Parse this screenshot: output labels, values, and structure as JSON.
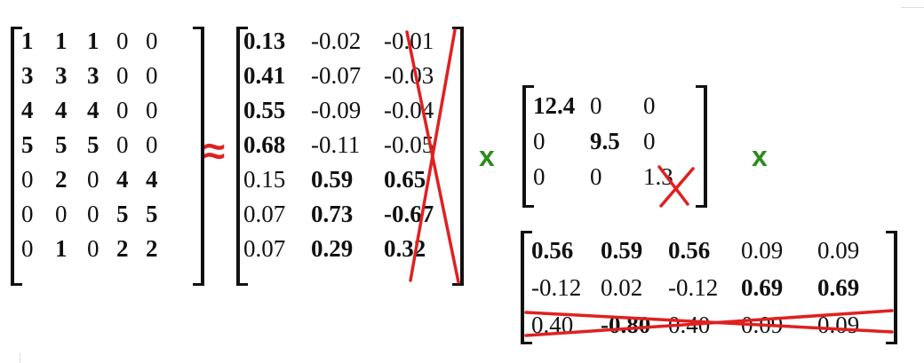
{
  "operators": {
    "approx": "≈",
    "times": "x"
  },
  "matrix_a": {
    "rows": [
      [
        {
          "v": "1",
          "b": true
        },
        {
          "v": "1",
          "b": true
        },
        {
          "v": "1",
          "b": true
        },
        {
          "v": "0",
          "b": false
        },
        {
          "v": "0",
          "b": false
        }
      ],
      [
        {
          "v": "3",
          "b": true
        },
        {
          "v": "3",
          "b": true
        },
        {
          "v": "3",
          "b": true
        },
        {
          "v": "0",
          "b": false
        },
        {
          "v": "0",
          "b": false
        }
      ],
      [
        {
          "v": "4",
          "b": true
        },
        {
          "v": "4",
          "b": true
        },
        {
          "v": "4",
          "b": true
        },
        {
          "v": "0",
          "b": false
        },
        {
          "v": "0",
          "b": false
        }
      ],
      [
        {
          "v": "5",
          "b": true
        },
        {
          "v": "5",
          "b": true
        },
        {
          "v": "5",
          "b": true
        },
        {
          "v": "0",
          "b": false
        },
        {
          "v": "0",
          "b": false
        }
      ],
      [
        {
          "v": "0",
          "b": false
        },
        {
          "v": "2",
          "b": true
        },
        {
          "v": "0",
          "b": false
        },
        {
          "v": "4",
          "b": true
        },
        {
          "v": "4",
          "b": true
        }
      ],
      [
        {
          "v": "0",
          "b": false
        },
        {
          "v": "0",
          "b": false
        },
        {
          "v": "0",
          "b": false
        },
        {
          "v": "5",
          "b": true
        },
        {
          "v": "5",
          "b": true
        }
      ],
      [
        {
          "v": "0",
          "b": false
        },
        {
          "v": "1",
          "b": true
        },
        {
          "v": "0",
          "b": false
        },
        {
          "v": "2",
          "b": true
        },
        {
          "v": "2",
          "b": true
        }
      ]
    ]
  },
  "matrix_u": {
    "rows": [
      [
        {
          "v": "0.13",
          "b": true
        },
        {
          "v": "-0.02",
          "b": false
        },
        {
          "v": "-0.01",
          "b": false
        }
      ],
      [
        {
          "v": "0.41",
          "b": true
        },
        {
          "v": "-0.07",
          "b": false
        },
        {
          "v": "-0.03",
          "b": false
        }
      ],
      [
        {
          "v": "0.55",
          "b": true
        },
        {
          "v": "-0.09",
          "b": false
        },
        {
          "v": "-0.04",
          "b": false
        }
      ],
      [
        {
          "v": "0.68",
          "b": true
        },
        {
          "v": "-0.11",
          "b": false
        },
        {
          "v": "-0.05",
          "b": false
        }
      ],
      [
        {
          "v": "0.15",
          "b": false
        },
        {
          "v": "0.59",
          "b": true
        },
        {
          "v": "0.65",
          "b": true
        }
      ],
      [
        {
          "v": "0.07",
          "b": false
        },
        {
          "v": "0.73",
          "b": true
        },
        {
          "v": "-0.67",
          "b": true
        }
      ],
      [
        {
          "v": "0.07",
          "b": false
        },
        {
          "v": "0.29",
          "b": true
        },
        {
          "v": "0.32",
          "b": true
        }
      ]
    ],
    "crossed_out": "column 3"
  },
  "matrix_sigma": {
    "rows": [
      [
        {
          "v": "12.4",
          "b": true
        },
        {
          "v": "0",
          "b": false
        },
        {
          "v": "0",
          "b": false
        }
      ],
      [
        {
          "v": "0",
          "b": false
        },
        {
          "v": "9.5",
          "b": true
        },
        {
          "v": "0",
          "b": false
        }
      ],
      [
        {
          "v": "0",
          "b": false
        },
        {
          "v": "0",
          "b": false
        },
        {
          "v": "1.3",
          "b": false
        }
      ]
    ],
    "crossed_out": "entry 3,3"
  },
  "matrix_vt": {
    "rows": [
      [
        {
          "v": "0.56",
          "b": true
        },
        {
          "v": "0.59",
          "b": true
        },
        {
          "v": "0.56",
          "b": true
        },
        {
          "v": "0.09",
          "b": false
        },
        {
          "v": "0.09",
          "b": false
        }
      ],
      [
        {
          "v": "-0.12",
          "b": false
        },
        {
          "v": "0.02",
          "b": false
        },
        {
          "v": "-0.12",
          "b": false
        },
        {
          "v": "0.69",
          "b": true
        },
        {
          "v": "0.69",
          "b": true
        }
      ],
      [
        {
          "v": "0.40",
          "b": false
        },
        {
          "v": "-0.80",
          "b": true
        },
        {
          "v": "0.40",
          "b": false
        },
        {
          "v": "0.09",
          "b": false
        },
        {
          "v": "0.09",
          "b": false
        }
      ]
    ],
    "crossed_out": "row 3"
  },
  "colors": {
    "ink": "#111111",
    "strike": "#e02020",
    "approx": "#e02020",
    "times": "#2e8b1e"
  }
}
